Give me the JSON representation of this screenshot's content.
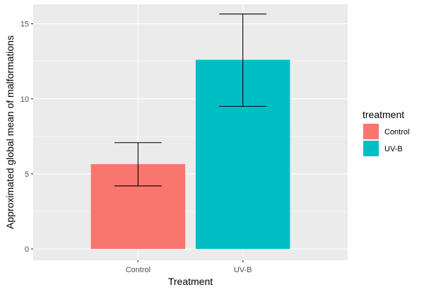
{
  "chart_data": {
    "type": "bar",
    "categories": [
      "Control",
      "UV-B"
    ],
    "values": [
      5.65,
      12.6
    ],
    "error_bars": [
      {
        "lower": 4.2,
        "upper": 7.08
      },
      {
        "lower": 9.5,
        "upper": 15.65
      }
    ],
    "colors": [
      "#F8766D",
      "#00BFC4"
    ],
    "xlabel": "Treatment",
    "ylabel": "Approximated global mean of malformations",
    "ylim": [
      -0.75,
      16.3
    ],
    "yticks": [
      0,
      5,
      10,
      15
    ],
    "ytick_labels": [
      "0",
      "5",
      "10",
      "15"
    ],
    "grid": true,
    "panel_background": "#EBEBEB",
    "legend": {
      "title": "treatment",
      "position": "right",
      "entries": [
        "Control",
        "UV-B"
      ]
    }
  }
}
